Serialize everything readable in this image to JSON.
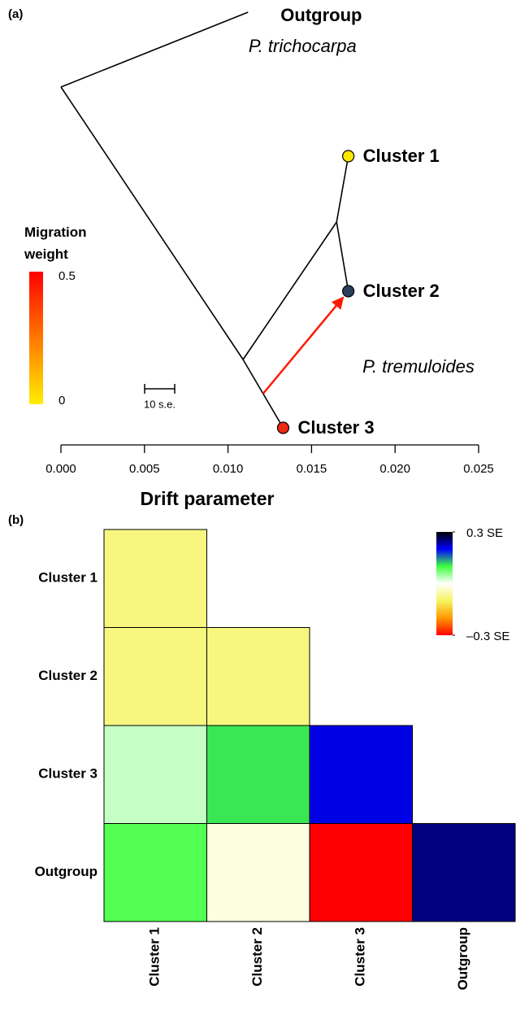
{
  "chart_data": [
    {
      "type": "tree",
      "panel_label": "(a)",
      "xlabel": "Drift parameter",
      "xlim": [
        0,
        0.025
      ],
      "xticks": [
        {
          "value": 0,
          "label": "0.000"
        },
        {
          "value": 0.005,
          "label": "0.005"
        },
        {
          "value": 0.01,
          "label": "0.010"
        },
        {
          "value": 0.015,
          "label": "0.015"
        },
        {
          "value": 0.02,
          "label": "0.020"
        },
        {
          "value": 0.025,
          "label": "0.025"
        }
      ],
      "tree": {
        "x": 0,
        "children": [
          {
            "name": "Outgroup",
            "subtitle": "P. trichocarpa",
            "x": 0.0112
          },
          {
            "x": 0.0109,
            "children": [
              {
                "x": 0.0165,
                "children": [
                  {
                    "name": "Cluster 1",
                    "x": 0.0172,
                    "color": "#ffe800"
                  },
                  {
                    "name": "Cluster 2",
                    "x": 0.0172,
                    "color": "#2b3f5c"
                  }
                ]
              },
              {
                "name": "Cluster 3",
                "x": 0.0133,
                "color": "#ee2a10"
              }
            ]
          }
        ]
      },
      "group_label": "P. tremuloides",
      "migration": {
        "x": [
          0.0121,
          0.0172
        ],
        "weight": 0.45
      },
      "scale_bar": {
        "label": "10 s.e.",
        "length": 0.0018
      },
      "legend": {
        "title": "Migration weight",
        "ticks": [
          0,
          0.5
        ],
        "colors": [
          "#ffee00",
          "#ff0000"
        ]
      }
    },
    {
      "type": "heatmap",
      "panel_label": "(b)",
      "rows": [
        "Cluster 1",
        "Cluster 2",
        "Cluster 3",
        "Outgroup"
      ],
      "columns": [
        "Cluster 1",
        "Cluster 2",
        "Cluster 3",
        "Outgroup"
      ],
      "values": [
        [
          -0.08,
          null,
          null,
          null
        ],
        [
          -0.08,
          -0.08,
          null,
          null
        ],
        [
          0.03,
          0.11,
          0.21,
          null
        ],
        [
          0.09,
          -0.02,
          -0.3,
          0.25
        ]
      ],
      "zlim": [
        -0.3,
        0.3
      ],
      "colors": [
        "#ff0000",
        "#ff9900",
        "#f5f560",
        "#ffffff",
        "#40ff40",
        "#0000ff",
        "#000000"
      ],
      "zticks": [
        {
          "value": 0.3,
          "label": "0.3 SE"
        },
        {
          "value": -0.3,
          "label": "–0.3 SE"
        }
      ]
    }
  ]
}
